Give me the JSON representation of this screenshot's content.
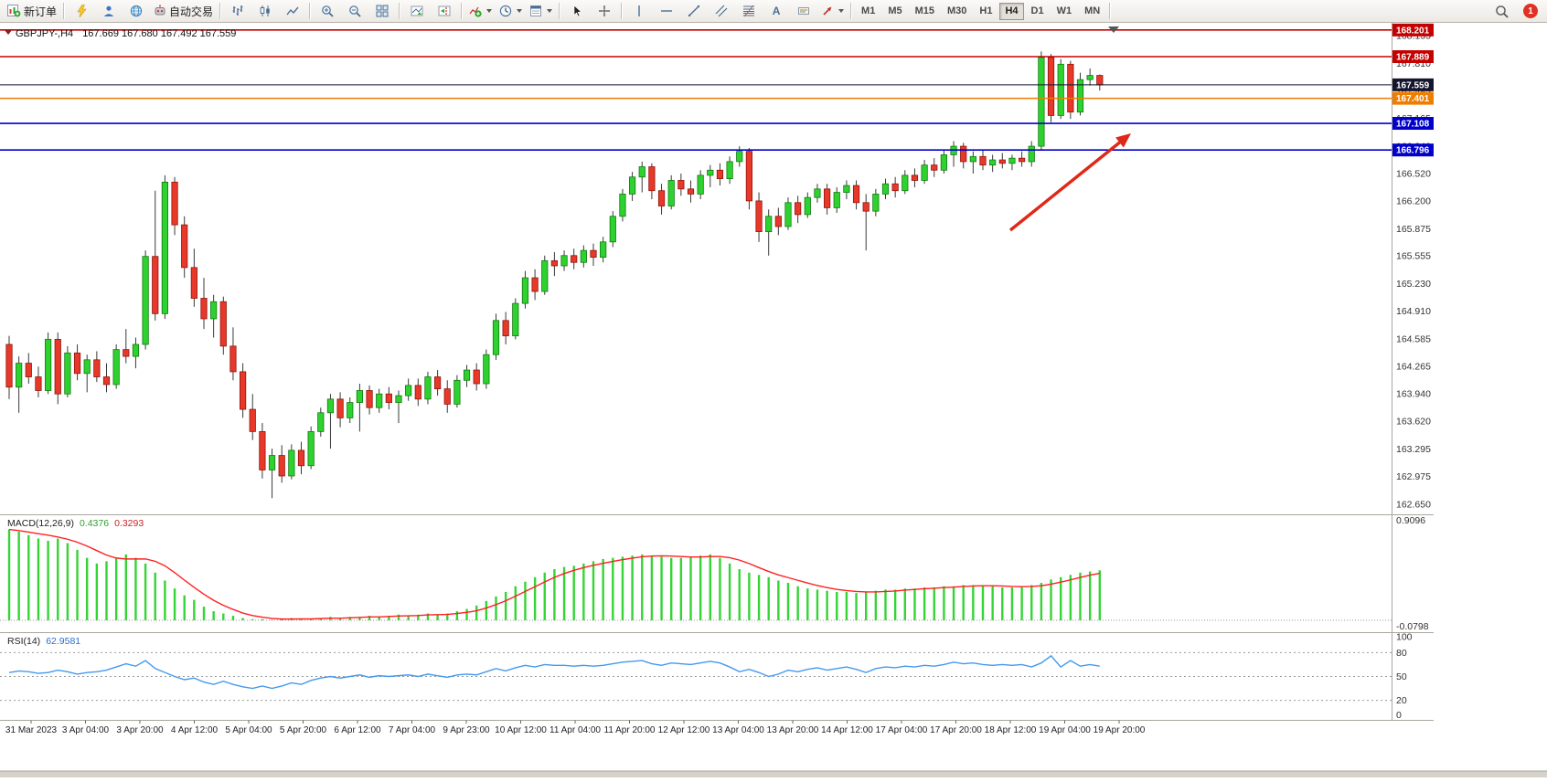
{
  "toolbar": {
    "groups": [
      {
        "name": "order",
        "items": [
          {
            "name": "new-order-button",
            "icon": "new-order",
            "label": "新订单"
          }
        ]
      },
      {
        "name": "quick",
        "items": [
          {
            "name": "metaeditor-button",
            "icon": "yellow-tool"
          },
          {
            "name": "profile-button",
            "icon": "person"
          },
          {
            "name": "community-button",
            "icon": "globe"
          },
          {
            "name": "algo-trading-button",
            "icon": "robot",
            "label": "自动交易"
          }
        ]
      },
      {
        "name": "chart-type",
        "items": [
          {
            "name": "bar-chart-button",
            "icon": "bars"
          },
          {
            "name": "candlestick-chart-button",
            "icon": "candles"
          },
          {
            "name": "line-chart-button",
            "icon": "line"
          }
        ]
      },
      {
        "name": "zoom",
        "items": [
          {
            "name": "zoom-in-button",
            "icon": "zoom-in"
          },
          {
            "name": "zoom-out-button",
            "icon": "zoom-out"
          },
          {
            "name": "tile-windows-button",
            "icon": "tile"
          }
        ]
      },
      {
        "name": "scroll",
        "items": [
          {
            "name": "auto-scroll-button",
            "icon": "auto-scroll"
          },
          {
            "name": "chart-shift-button",
            "icon": "chart-shift"
          }
        ]
      },
      {
        "name": "insert",
        "items": [
          {
            "name": "indicators-button",
            "icon": "indicators",
            "dropdown": true
          },
          {
            "name": "periods-button",
            "icon": "clock",
            "dropdown": true
          },
          {
            "name": "templates-button",
            "icon": "template",
            "dropdown": true
          }
        ]
      },
      {
        "name": "cursor",
        "items": [
          {
            "name": "cursor-button",
            "icon": "cursor"
          },
          {
            "name": "crosshair-button",
            "icon": "crosshair"
          }
        ]
      },
      {
        "name": "objects",
        "items": [
          {
            "name": "vertical-line-button",
            "icon": "vline"
          },
          {
            "name": "horizontal-line-button",
            "icon": "hline"
          },
          {
            "name": "trendline-button",
            "icon": "trendline"
          },
          {
            "name": "channel-button",
            "icon": "channel"
          },
          {
            "name": "fibonacci-button",
            "icon": "fibo"
          },
          {
            "name": "text-button",
            "icon": "text",
            "label": "A"
          },
          {
            "name": "label-button",
            "icon": "label"
          },
          {
            "name": "arrows-button",
            "icon": "arrow-tool",
            "dropdown": true
          }
        ]
      }
    ],
    "timeframes": [
      "M1",
      "M5",
      "M15",
      "M30",
      "H1",
      "H4",
      "D1",
      "W1",
      "MN"
    ],
    "active_timeframe": "H4",
    "notification_count": "1"
  },
  "chart": {
    "symbol": "GBPJPY-,H4",
    "ohlc_line": "167.669 167.680 167.492 167.559",
    "price_scale": [
      "168.135",
      "167.810",
      "167.485",
      "167.165",
      "166.840",
      "166.520",
      "166.200",
      "165.875",
      "165.555",
      "165.230",
      "164.910",
      "164.585",
      "164.265",
      "163.940",
      "163.620",
      "163.295",
      "162.975",
      "162.650"
    ],
    "time_axis": [
      "31 Mar 2023",
      "3 Apr 04:00",
      "3 Apr 20:00",
      "4 Apr 12:00",
      "5 Apr 04:00",
      "5 Apr 20:00",
      "6 Apr 12:00",
      "7 Apr 04:00",
      "9 Apr 23:00",
      "10 Apr 12:00",
      "11 Apr 04:00",
      "11 Apr 20:00",
      "12 Apr 12:00",
      "13 Apr 04:00",
      "13 Apr 20:00",
      "14 Apr 12:00",
      "17 Apr 04:00",
      "17 Apr 20:00",
      "18 Apr 12:00",
      "19 Apr 04:00",
      "19 Apr 20:00"
    ],
    "price_tags": [
      {
        "value": "168.201",
        "price": 168.201,
        "color": "#c40000",
        "type": "resistance-line"
      },
      {
        "value": "167.889",
        "price": 167.889,
        "color": "#c40000",
        "type": "resistance-line"
      },
      {
        "value": "167.559",
        "price": 167.559,
        "color": "#15152e",
        "type": "current-price"
      },
      {
        "value": "167.401",
        "price": 167.401,
        "color": "#ef7d00",
        "type": "pivot-line"
      },
      {
        "value": "167.108",
        "price": 167.108,
        "color": "#0000c8",
        "type": "support-line"
      },
      {
        "value": "166.796",
        "price": 166.796,
        "color": "#0000c8",
        "type": "support-line"
      }
    ]
  },
  "indicators": {
    "macd_label": "MACD(12,26,9)",
    "macd_value": "0.4376",
    "macd_signal": "0.3293",
    "rsi_label": "RSI(14)",
    "rsi_value": "62.9581"
  },
  "annotation": {
    "type": "arrow",
    "color": "#e02818"
  },
  "colors": {
    "bull": "#2ed22e",
    "bull_edge": "#117a11",
    "bear": "#e8382a",
    "bear_edge": "#8f150c",
    "wick": "#3a3a3a",
    "macd_hist": "#35d435",
    "macd_signal": "#ff2020",
    "rsi_line": "#4499ee"
  },
  "chart_data": [
    {
      "type": "candlestick",
      "title": "GBPJPY- H4",
      "y_range": [
        162.65,
        168.135
      ],
      "ohlc": [
        [
          164.52,
          164.62,
          163.88,
          164.02
        ],
        [
          164.02,
          164.38,
          163.72,
          164.3
        ],
        [
          164.3,
          164.42,
          164.06,
          164.14
        ],
        [
          164.14,
          164.26,
          163.9,
          163.98
        ],
        [
          163.98,
          164.66,
          163.94,
          164.58
        ],
        [
          164.58,
          164.66,
          163.82,
          163.94
        ],
        [
          163.94,
          164.5,
          163.9,
          164.42
        ],
        [
          164.42,
          164.52,
          164.1,
          164.18
        ],
        [
          164.18,
          164.4,
          163.96,
          164.34
        ],
        [
          164.34,
          164.44,
          164.08,
          164.14
        ],
        [
          164.14,
          164.3,
          163.96,
          164.05
        ],
        [
          164.05,
          164.52,
          164.0,
          164.46
        ],
        [
          164.46,
          164.7,
          164.3,
          164.38
        ],
        [
          164.38,
          164.6,
          164.24,
          164.52
        ],
        [
          164.52,
          165.62,
          164.46,
          165.55
        ],
        [
          165.55,
          166.32,
          164.8,
          164.88
        ],
        [
          164.88,
          166.5,
          164.82,
          166.42
        ],
        [
          166.42,
          166.48,
          165.8,
          165.92
        ],
        [
          165.92,
          166.02,
          165.3,
          165.42
        ],
        [
          165.42,
          165.64,
          164.96,
          165.06
        ],
        [
          165.06,
          165.3,
          164.7,
          164.82
        ],
        [
          164.82,
          165.1,
          164.6,
          165.02
        ],
        [
          165.02,
          165.08,
          164.4,
          164.5
        ],
        [
          164.5,
          164.72,
          164.1,
          164.2
        ],
        [
          164.2,
          164.3,
          163.66,
          163.76
        ],
        [
          163.76,
          163.94,
          163.4,
          163.5
        ],
        [
          163.5,
          163.6,
          162.95,
          163.05
        ],
        [
          163.05,
          163.3,
          162.72,
          163.22
        ],
        [
          163.22,
          163.34,
          162.9,
          162.98
        ],
        [
          162.98,
          163.35,
          162.94,
          163.28
        ],
        [
          163.28,
          163.38,
          163.0,
          163.1
        ],
        [
          163.1,
          163.56,
          163.06,
          163.5
        ],
        [
          163.5,
          163.78,
          163.44,
          163.72
        ],
        [
          163.72,
          163.94,
          163.3,
          163.88
        ],
        [
          163.88,
          163.96,
          163.55,
          163.66
        ],
        [
          163.66,
          163.9,
          163.6,
          163.84
        ],
        [
          163.84,
          164.06,
          163.5,
          163.98
        ],
        [
          163.98,
          164.04,
          163.7,
          163.78
        ],
        [
          163.78,
          164.0,
          163.72,
          163.94
        ],
        [
          163.94,
          164.02,
          163.76,
          163.84
        ],
        [
          163.84,
          163.98,
          163.6,
          163.92
        ],
        [
          163.92,
          164.12,
          163.86,
          164.04
        ],
        [
          164.04,
          164.12,
          163.8,
          163.88
        ],
        [
          163.88,
          164.2,
          163.82,
          164.14
        ],
        [
          164.14,
          164.22,
          163.92,
          164.0
        ],
        [
          164.0,
          164.1,
          163.72,
          163.82
        ],
        [
          163.82,
          164.16,
          163.78,
          164.1
        ],
        [
          164.1,
          164.28,
          164.02,
          164.22
        ],
        [
          164.22,
          164.3,
          163.98,
          164.06
        ],
        [
          164.06,
          164.46,
          164.0,
          164.4
        ],
        [
          164.4,
          164.88,
          164.34,
          164.8
        ],
        [
          164.8,
          164.9,
          164.52,
          164.62
        ],
        [
          164.62,
          165.06,
          164.58,
          165.0
        ],
        [
          165.0,
          165.38,
          164.94,
          165.3
        ],
        [
          165.3,
          165.4,
          165.04,
          165.14
        ],
        [
          165.14,
          165.56,
          165.1,
          165.5
        ],
        [
          165.5,
          165.6,
          165.32,
          165.44
        ],
        [
          165.44,
          165.62,
          165.38,
          165.56
        ],
        [
          165.56,
          165.64,
          165.4,
          165.48
        ],
        [
          165.48,
          165.68,
          165.42,
          165.62
        ],
        [
          165.62,
          165.7,
          165.44,
          165.54
        ],
        [
          165.54,
          165.78,
          165.48,
          165.72
        ],
        [
          165.72,
          166.08,
          165.66,
          166.02
        ],
        [
          166.02,
          166.34,
          165.96,
          166.28
        ],
        [
          166.28,
          166.54,
          166.2,
          166.48
        ],
        [
          166.48,
          166.66,
          166.3,
          166.6
        ],
        [
          166.6,
          166.64,
          166.22,
          166.32
        ],
        [
          166.32,
          166.4,
          166.04,
          166.14
        ],
        [
          166.14,
          166.5,
          166.1,
          166.44
        ],
        [
          166.44,
          166.52,
          166.26,
          166.34
        ],
        [
          166.34,
          166.44,
          166.18,
          166.28
        ],
        [
          166.28,
          166.56,
          166.22,
          166.5
        ],
        [
          166.5,
          166.62,
          166.36,
          166.56
        ],
        [
          166.56,
          166.64,
          166.38,
          166.46
        ],
        [
          166.46,
          166.72,
          166.4,
          166.66
        ],
        [
          166.66,
          166.84,
          166.6,
          166.78
        ],
        [
          166.78,
          166.82,
          166.1,
          166.2
        ],
        [
          166.2,
          166.3,
          165.72,
          165.84
        ],
        [
          165.84,
          166.1,
          165.56,
          166.02
        ],
        [
          166.02,
          166.12,
          165.8,
          165.9
        ],
        [
          165.9,
          166.24,
          165.86,
          166.18
        ],
        [
          166.18,
          166.26,
          165.94,
          166.04
        ],
        [
          166.04,
          166.3,
          166.0,
          166.24
        ],
        [
          166.24,
          166.4,
          166.18,
          166.34
        ],
        [
          166.34,
          166.4,
          166.04,
          166.12
        ],
        [
          166.12,
          166.36,
          166.06,
          166.3
        ],
        [
          166.3,
          166.44,
          166.22,
          166.38
        ],
        [
          166.38,
          166.44,
          166.1,
          166.18
        ],
        [
          166.18,
          166.28,
          165.62,
          166.08
        ],
        [
          166.08,
          166.34,
          166.02,
          166.28
        ],
        [
          166.28,
          166.46,
          166.22,
          166.4
        ],
        [
          166.4,
          166.48,
          166.24,
          166.32
        ],
        [
          166.32,
          166.56,
          166.28,
          166.5
        ],
        [
          166.5,
          166.58,
          166.36,
          166.44
        ],
        [
          166.44,
          166.68,
          166.4,
          166.62
        ],
        [
          166.62,
          166.7,
          166.48,
          166.56
        ],
        [
          166.56,
          166.8,
          166.52,
          166.74
        ],
        [
          166.74,
          166.9,
          166.6,
          166.84
        ],
        [
          166.84,
          166.88,
          166.58,
          166.66
        ],
        [
          166.66,
          166.78,
          166.52,
          166.72
        ],
        [
          166.72,
          166.8,
          166.56,
          166.62
        ],
        [
          166.62,
          166.74,
          166.54,
          166.68
        ],
        [
          166.68,
          166.76,
          166.58,
          166.64
        ],
        [
          166.64,
          166.74,
          166.56,
          166.7
        ],
        [
          166.7,
          166.78,
          166.6,
          166.66
        ],
        [
          166.66,
          166.9,
          166.6,
          166.84
        ],
        [
          166.84,
          167.95,
          166.8,
          167.88
        ],
        [
          167.88,
          167.92,
          167.12,
          167.2
        ],
        [
          167.2,
          167.86,
          167.16,
          167.8
        ],
        [
          167.8,
          167.84,
          167.16,
          167.24
        ],
        [
          167.24,
          167.7,
          167.2,
          167.62
        ],
        [
          167.62,
          167.75,
          167.55,
          167.669
        ],
        [
          167.669,
          167.68,
          167.492,
          167.559
        ]
      ]
    },
    {
      "type": "bar",
      "title": "MACD(12,26,9)",
      "current_macd": 0.4376,
      "current_signal": 0.3293,
      "y_range": [
        -0.0798,
        0.9096
      ],
      "scale_labels": [
        "0.9096",
        "-0.0798"
      ],
      "values": [
        0.8,
        0.78,
        0.75,
        0.72,
        0.7,
        0.72,
        0.68,
        0.62,
        0.55,
        0.5,
        0.52,
        0.55,
        0.58,
        0.55,
        0.5,
        0.42,
        0.35,
        0.28,
        0.22,
        0.18,
        0.12,
        0.08,
        0.06,
        0.04,
        0.02,
        0.01,
        0.01,
        0.005,
        0.01,
        0.02,
        0.015,
        0.01,
        0.02,
        0.03,
        0.02,
        0.03,
        0.03,
        0.04,
        0.03,
        0.04,
        0.05,
        0.04,
        0.05,
        0.06,
        0.05,
        0.06,
        0.08,
        0.1,
        0.13,
        0.17,
        0.21,
        0.25,
        0.3,
        0.34,
        0.38,
        0.42,
        0.45,
        0.47,
        0.48,
        0.5,
        0.52,
        0.54,
        0.55,
        0.56,
        0.57,
        0.58,
        0.57,
        0.56,
        0.55,
        0.55,
        0.56,
        0.57,
        0.58,
        0.55,
        0.5,
        0.45,
        0.42,
        0.4,
        0.38,
        0.35,
        0.33,
        0.3,
        0.28,
        0.27,
        0.26,
        0.25,
        0.25,
        0.24,
        0.25,
        0.26,
        0.27,
        0.27,
        0.28,
        0.28,
        0.29,
        0.29,
        0.3,
        0.3,
        0.31,
        0.31,
        0.3,
        0.3,
        0.29,
        0.29,
        0.3,
        0.31,
        0.33,
        0.36,
        0.38,
        0.4,
        0.42,
        0.43,
        0.44
      ]
    },
    {
      "type": "line",
      "title": "RSI(14)",
      "current": 62.9581,
      "levels": [
        80,
        50,
        20
      ],
      "y_range": [
        0,
        100
      ],
      "scale_labels": [
        "100",
        "80",
        "50",
        "20",
        "0"
      ],
      "values": [
        55,
        57,
        56,
        54,
        55,
        58,
        56,
        53,
        55,
        56,
        58,
        62,
        66,
        63,
        70,
        60,
        55,
        50,
        46,
        48,
        43,
        40,
        44,
        40,
        37,
        35,
        38,
        35,
        38,
        42,
        40,
        45,
        48,
        50,
        48,
        50,
        52,
        49,
        51,
        50,
        51,
        52,
        50,
        53,
        51,
        49,
        52,
        53,
        52,
        56,
        60,
        57,
        61,
        64,
        62,
        65,
        64,
        64,
        63,
        64,
        63,
        64,
        66,
        68,
        69,
        70,
        66,
        64,
        67,
        66,
        65,
        67,
        69,
        67,
        62,
        56,
        59,
        55,
        50,
        53,
        58,
        56,
        59,
        61,
        58,
        60,
        62,
        59,
        55,
        60,
        62,
        61,
        63,
        62,
        64,
        63,
        65,
        68,
        66,
        67,
        65,
        64,
        65,
        64,
        65,
        62,
        67,
        76,
        62,
        70,
        63,
        65,
        63
      ]
    }
  ]
}
